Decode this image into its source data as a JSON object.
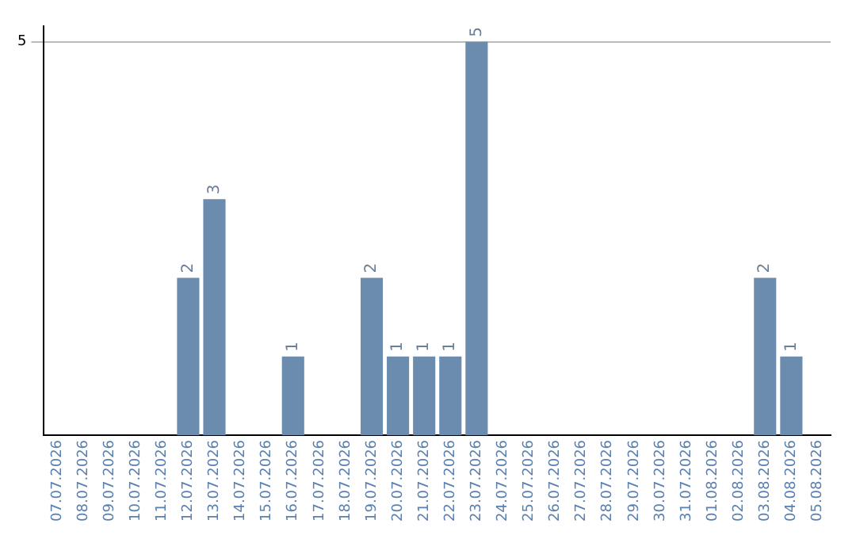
{
  "chart_data": {
    "type": "bar",
    "categories": [
      "07.07.2026",
      "08.07.2026",
      "09.07.2026",
      "10.07.2026",
      "11.07.2026",
      "12.07.2026",
      "13.07.2026",
      "14.07.2026",
      "15.07.2026",
      "16.07.2026",
      "17.07.2026",
      "18.07.2026",
      "19.07.2026",
      "20.07.2026",
      "21.07.2026",
      "22.07.2026",
      "23.07.2026",
      "24.07.2026",
      "25.07.2026",
      "26.07.2026",
      "27.07.2026",
      "28.07.2026",
      "29.07.2026",
      "30.07.2026",
      "31.07.2026",
      "01.08.2026",
      "02.08.2026",
      "03.08.2026",
      "04.08.2026",
      "05.08.2026"
    ],
    "values": [
      0,
      0,
      0,
      0,
      0,
      2,
      3,
      0,
      0,
      1,
      0,
      0,
      2,
      1,
      1,
      1,
      5,
      0,
      0,
      0,
      0,
      0,
      0,
      0,
      0,
      0,
      0,
      2,
      1,
      0
    ],
    "color": "#6b8cae",
    "value_labels": [
      null,
      null,
      null,
      null,
      null,
      "2",
      "3",
      null,
      null,
      "1",
      null,
      null,
      "2",
      "1",
      "1",
      "1",
      "5",
      null,
      null,
      null,
      null,
      null,
      null,
      null,
      null,
      null,
      null,
      "2",
      "1",
      null
    ],
    "ylim": [
      0,
      5.2
    ],
    "yticks": [
      5
    ],
    "grid": "y",
    "legend": false
  }
}
